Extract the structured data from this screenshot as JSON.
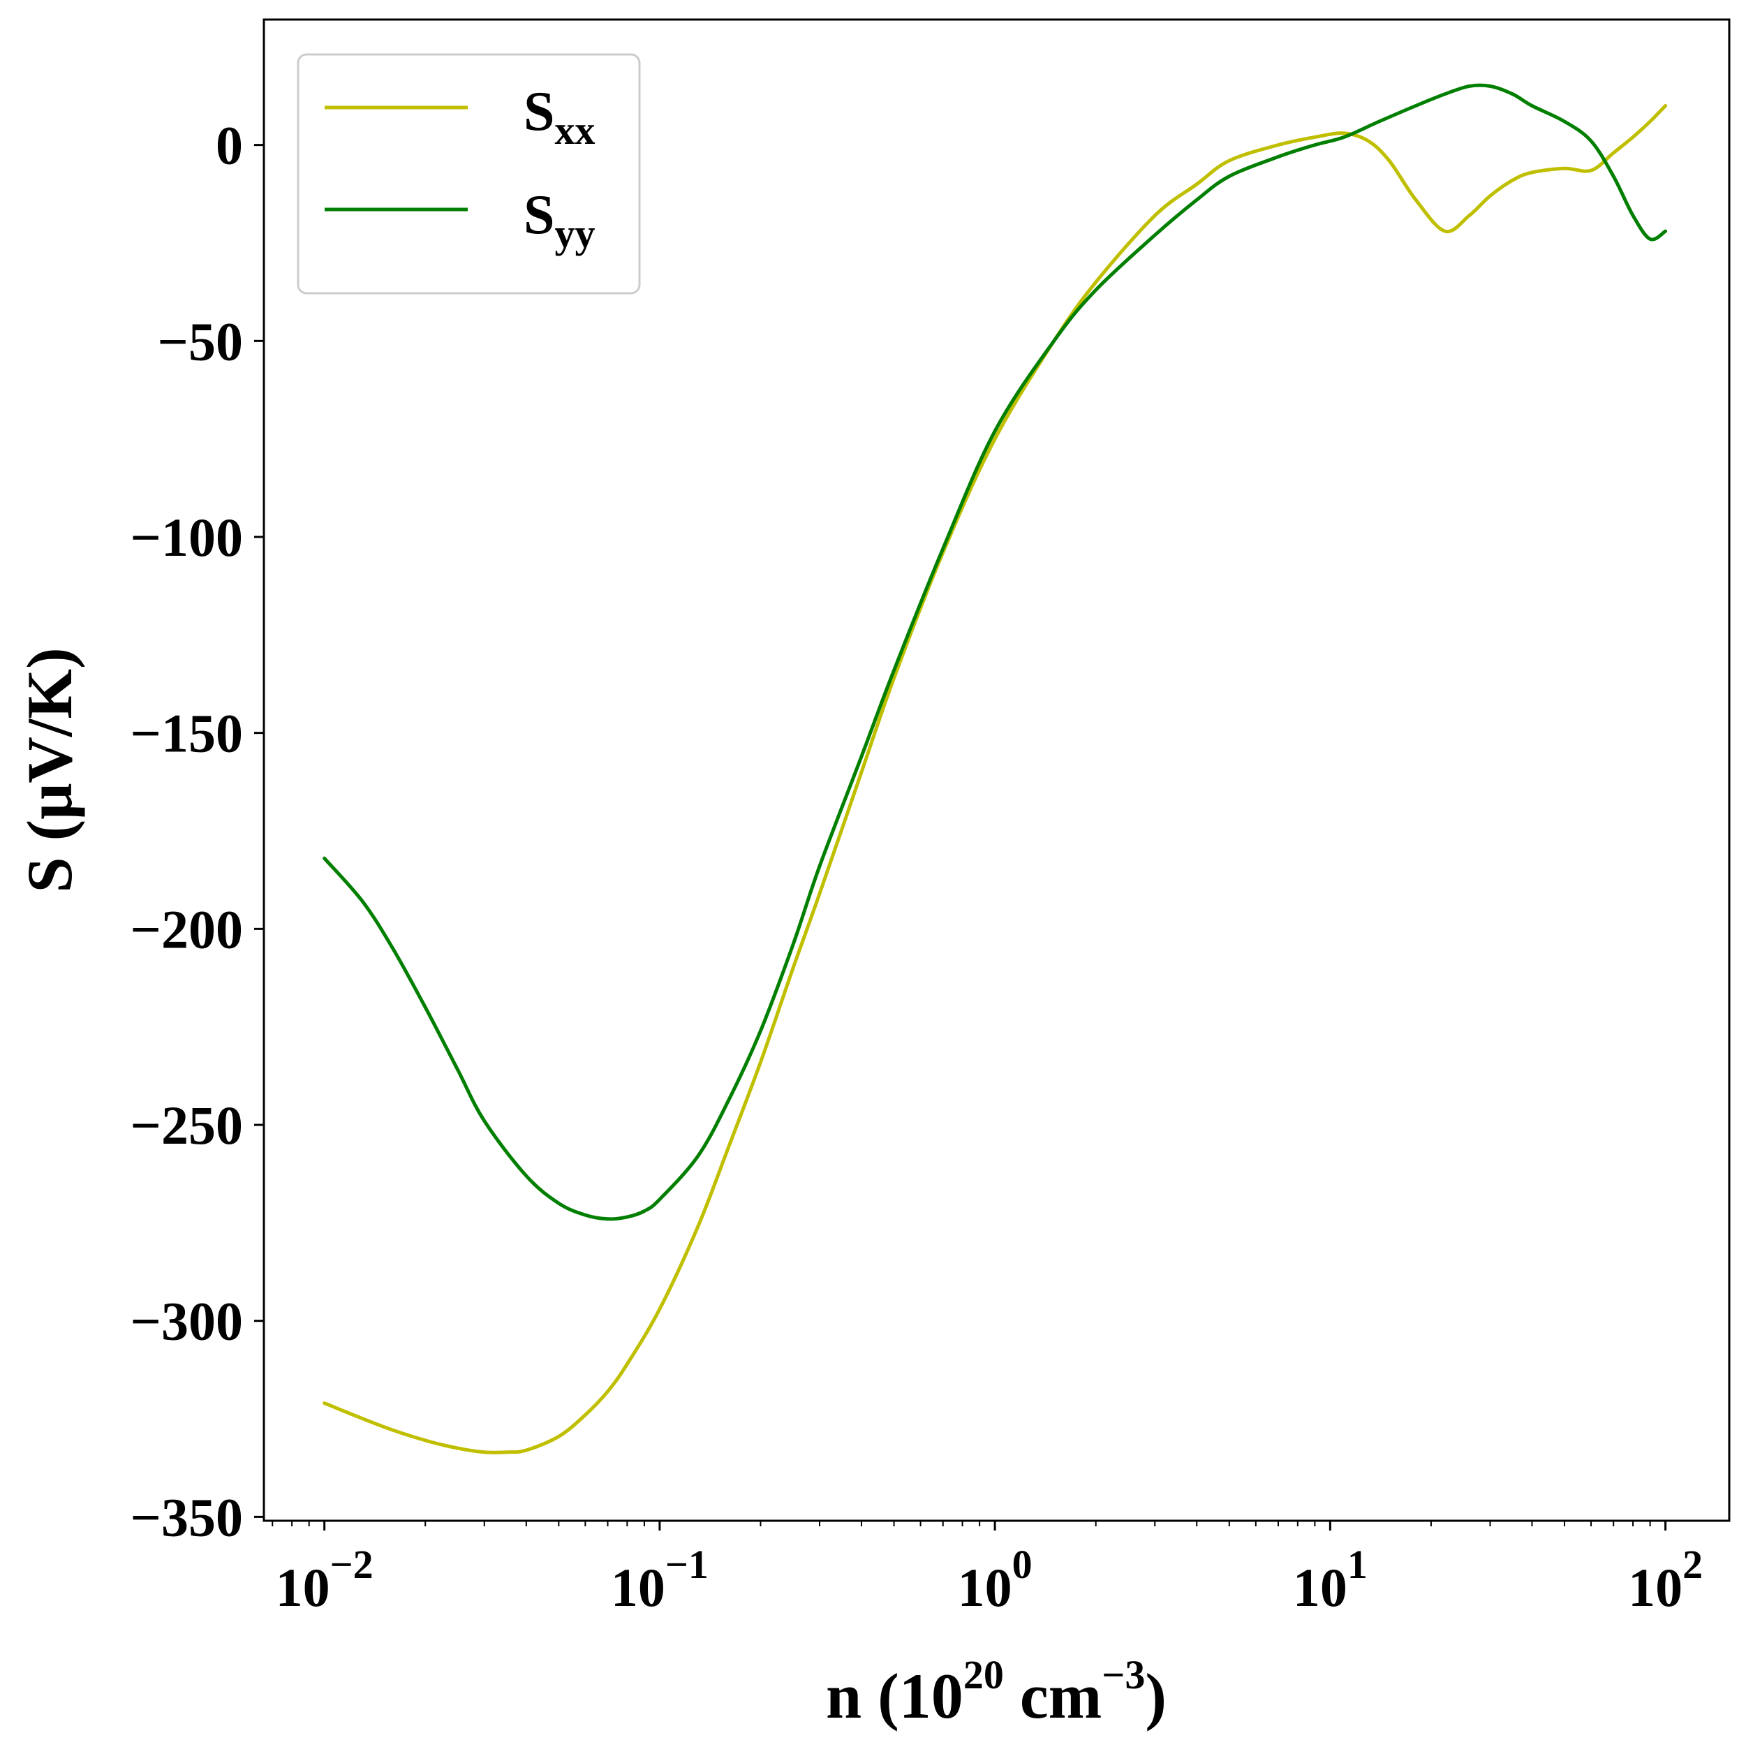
{
  "chart_data": {
    "type": "line",
    "x_scale": "log",
    "xlim": [
      0.0066,
      155
    ],
    "ylim": [
      -351,
      32
    ],
    "x_ticks": [
      {
        "value": 0.01,
        "base": "10",
        "exp": "−2"
      },
      {
        "value": 0.1,
        "base": "10",
        "exp": "−1"
      },
      {
        "value": 1,
        "base": "10",
        "exp": "0"
      },
      {
        "value": 10,
        "base": "10",
        "exp": "1"
      },
      {
        "value": 100,
        "base": "10",
        "exp": "2"
      }
    ],
    "y_ticks": [
      {
        "value": 0,
        "label": "0"
      },
      {
        "value": -50,
        "label": "−50"
      },
      {
        "value": -100,
        "label": "−100"
      },
      {
        "value": -150,
        "label": "−150"
      },
      {
        "value": -200,
        "label": "−200"
      },
      {
        "value": -250,
        "label": "−250"
      },
      {
        "value": -300,
        "label": "−300"
      },
      {
        "value": -350,
        "label": "−350"
      }
    ],
    "xlabel": {
      "pre": "n (10",
      "sup1": "20",
      "mid": " cm",
      "sup2": "−3",
      "post": ")"
    },
    "ylabel": "S (μV/K)",
    "grid": false,
    "legend_position": "upper-left",
    "series": [
      {
        "name_main": "S",
        "name_sub": "xx",
        "color": "#bfbf00",
        "x": [
          0.01,
          0.015,
          0.02,
          0.025,
          0.03,
          0.035,
          0.04,
          0.05,
          0.06,
          0.07,
          0.08,
          0.1,
          0.13,
          0.16,
          0.2,
          0.25,
          0.3,
          0.4,
          0.5,
          0.7,
          1.0,
          1.5,
          2.0,
          3.0,
          4.0,
          5.0,
          7.0,
          9.0,
          11.0,
          13.0,
          15.0,
          18.0,
          22.0,
          26.0,
          30.0,
          35.0,
          40.0,
          50.0,
          60.0,
          70.0,
          80.0,
          90.0,
          100.0
        ],
        "y": [
          -321,
          -327,
          -330.5,
          -332.5,
          -333.5,
          -333.5,
          -333,
          -329.5,
          -324,
          -318,
          -311,
          -297,
          -276,
          -256,
          -234,
          -210,
          -191,
          -160,
          -136,
          -104,
          -75,
          -50,
          -35,
          -18,
          -10,
          -4,
          0,
          2,
          3,
          1,
          -4,
          -14,
          -22,
          -18,
          -13,
          -9,
          -7,
          -6,
          -6.5,
          -2,
          2,
          6,
          10
        ]
      },
      {
        "name_main": "S",
        "name_sub": "yy",
        "color": "#007f00",
        "x": [
          0.01,
          0.013,
          0.016,
          0.02,
          0.025,
          0.03,
          0.04,
          0.05,
          0.06,
          0.07,
          0.08,
          0.09,
          0.1,
          0.13,
          0.16,
          0.2,
          0.25,
          0.3,
          0.4,
          0.5,
          0.7,
          1.0,
          1.5,
          2.0,
          3.0,
          4.0,
          5.0,
          7.0,
          9.0,
          11.0,
          14.0,
          18.0,
          22.0,
          26.0,
          30.0,
          35.0,
          40.0,
          50.0,
          60.0,
          70.0,
          80.0,
          90.0,
          100.0
        ],
        "y": [
          -182,
          -193,
          -205,
          -220,
          -236,
          -249,
          -263,
          -270,
          -273,
          -274,
          -273.5,
          -272,
          -269,
          -258,
          -244,
          -226,
          -204,
          -184,
          -156,
          -134,
          -103,
          -73,
          -50,
          -37,
          -23,
          -14,
          -8,
          -3,
          0,
          2,
          6,
          10,
          13,
          15,
          15,
          13,
          10,
          6,
          1,
          -8,
          -18,
          -24,
          -22
        ]
      }
    ]
  }
}
